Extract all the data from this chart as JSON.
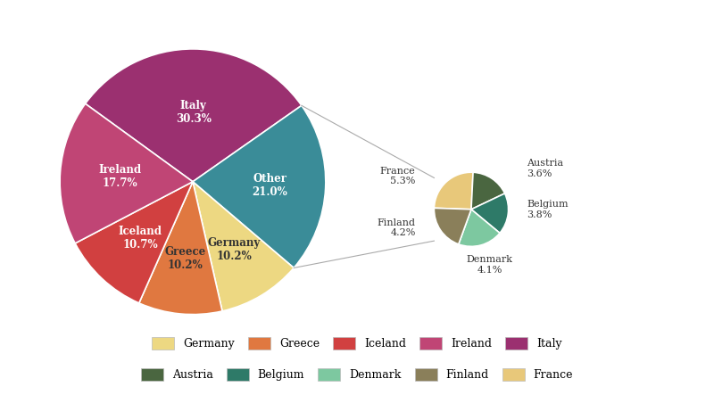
{
  "main_labels": [
    "Italy",
    "Other",
    "Germany",
    "Greece",
    "Iceland",
    "Ireland"
  ],
  "main_values": [
    30.3,
    21.0,
    10.2,
    10.2,
    10.7,
    17.7
  ],
  "main_colors": [
    "#9B3070",
    "#3A8C98",
    "#EDD882",
    "#E07840",
    "#D14040",
    "#C04575"
  ],
  "sub_labels": [
    "France",
    "Austria",
    "Belgium",
    "Denmark",
    "Finland"
  ],
  "sub_values": [
    5.3,
    3.6,
    3.8,
    4.1,
    4.2
  ],
  "sub_colors": [
    "#E8C87A",
    "#4A6640",
    "#2E7A68",
    "#7DC8A0",
    "#8A7F5A"
  ],
  "background_color": "#ffffff",
  "legend_items": [
    {
      "label": "Germany",
      "color": "#EDD882"
    },
    {
      "label": "Greece",
      "color": "#E07840"
    },
    {
      "label": "Iceland",
      "color": "#D14040"
    },
    {
      "label": "Ireland",
      "color": "#C04575"
    },
    {
      "label": "Italy",
      "color": "#9B3070"
    },
    {
      "label": "Austria",
      "color": "#4A6640"
    },
    {
      "label": "Belgium",
      "color": "#2E7A68"
    },
    {
      "label": "Denmark",
      "color": "#7DC8A0"
    },
    {
      "label": "Finland",
      "color": "#8A7F5A"
    },
    {
      "label": "France",
      "color": "#E8C87A"
    }
  ]
}
